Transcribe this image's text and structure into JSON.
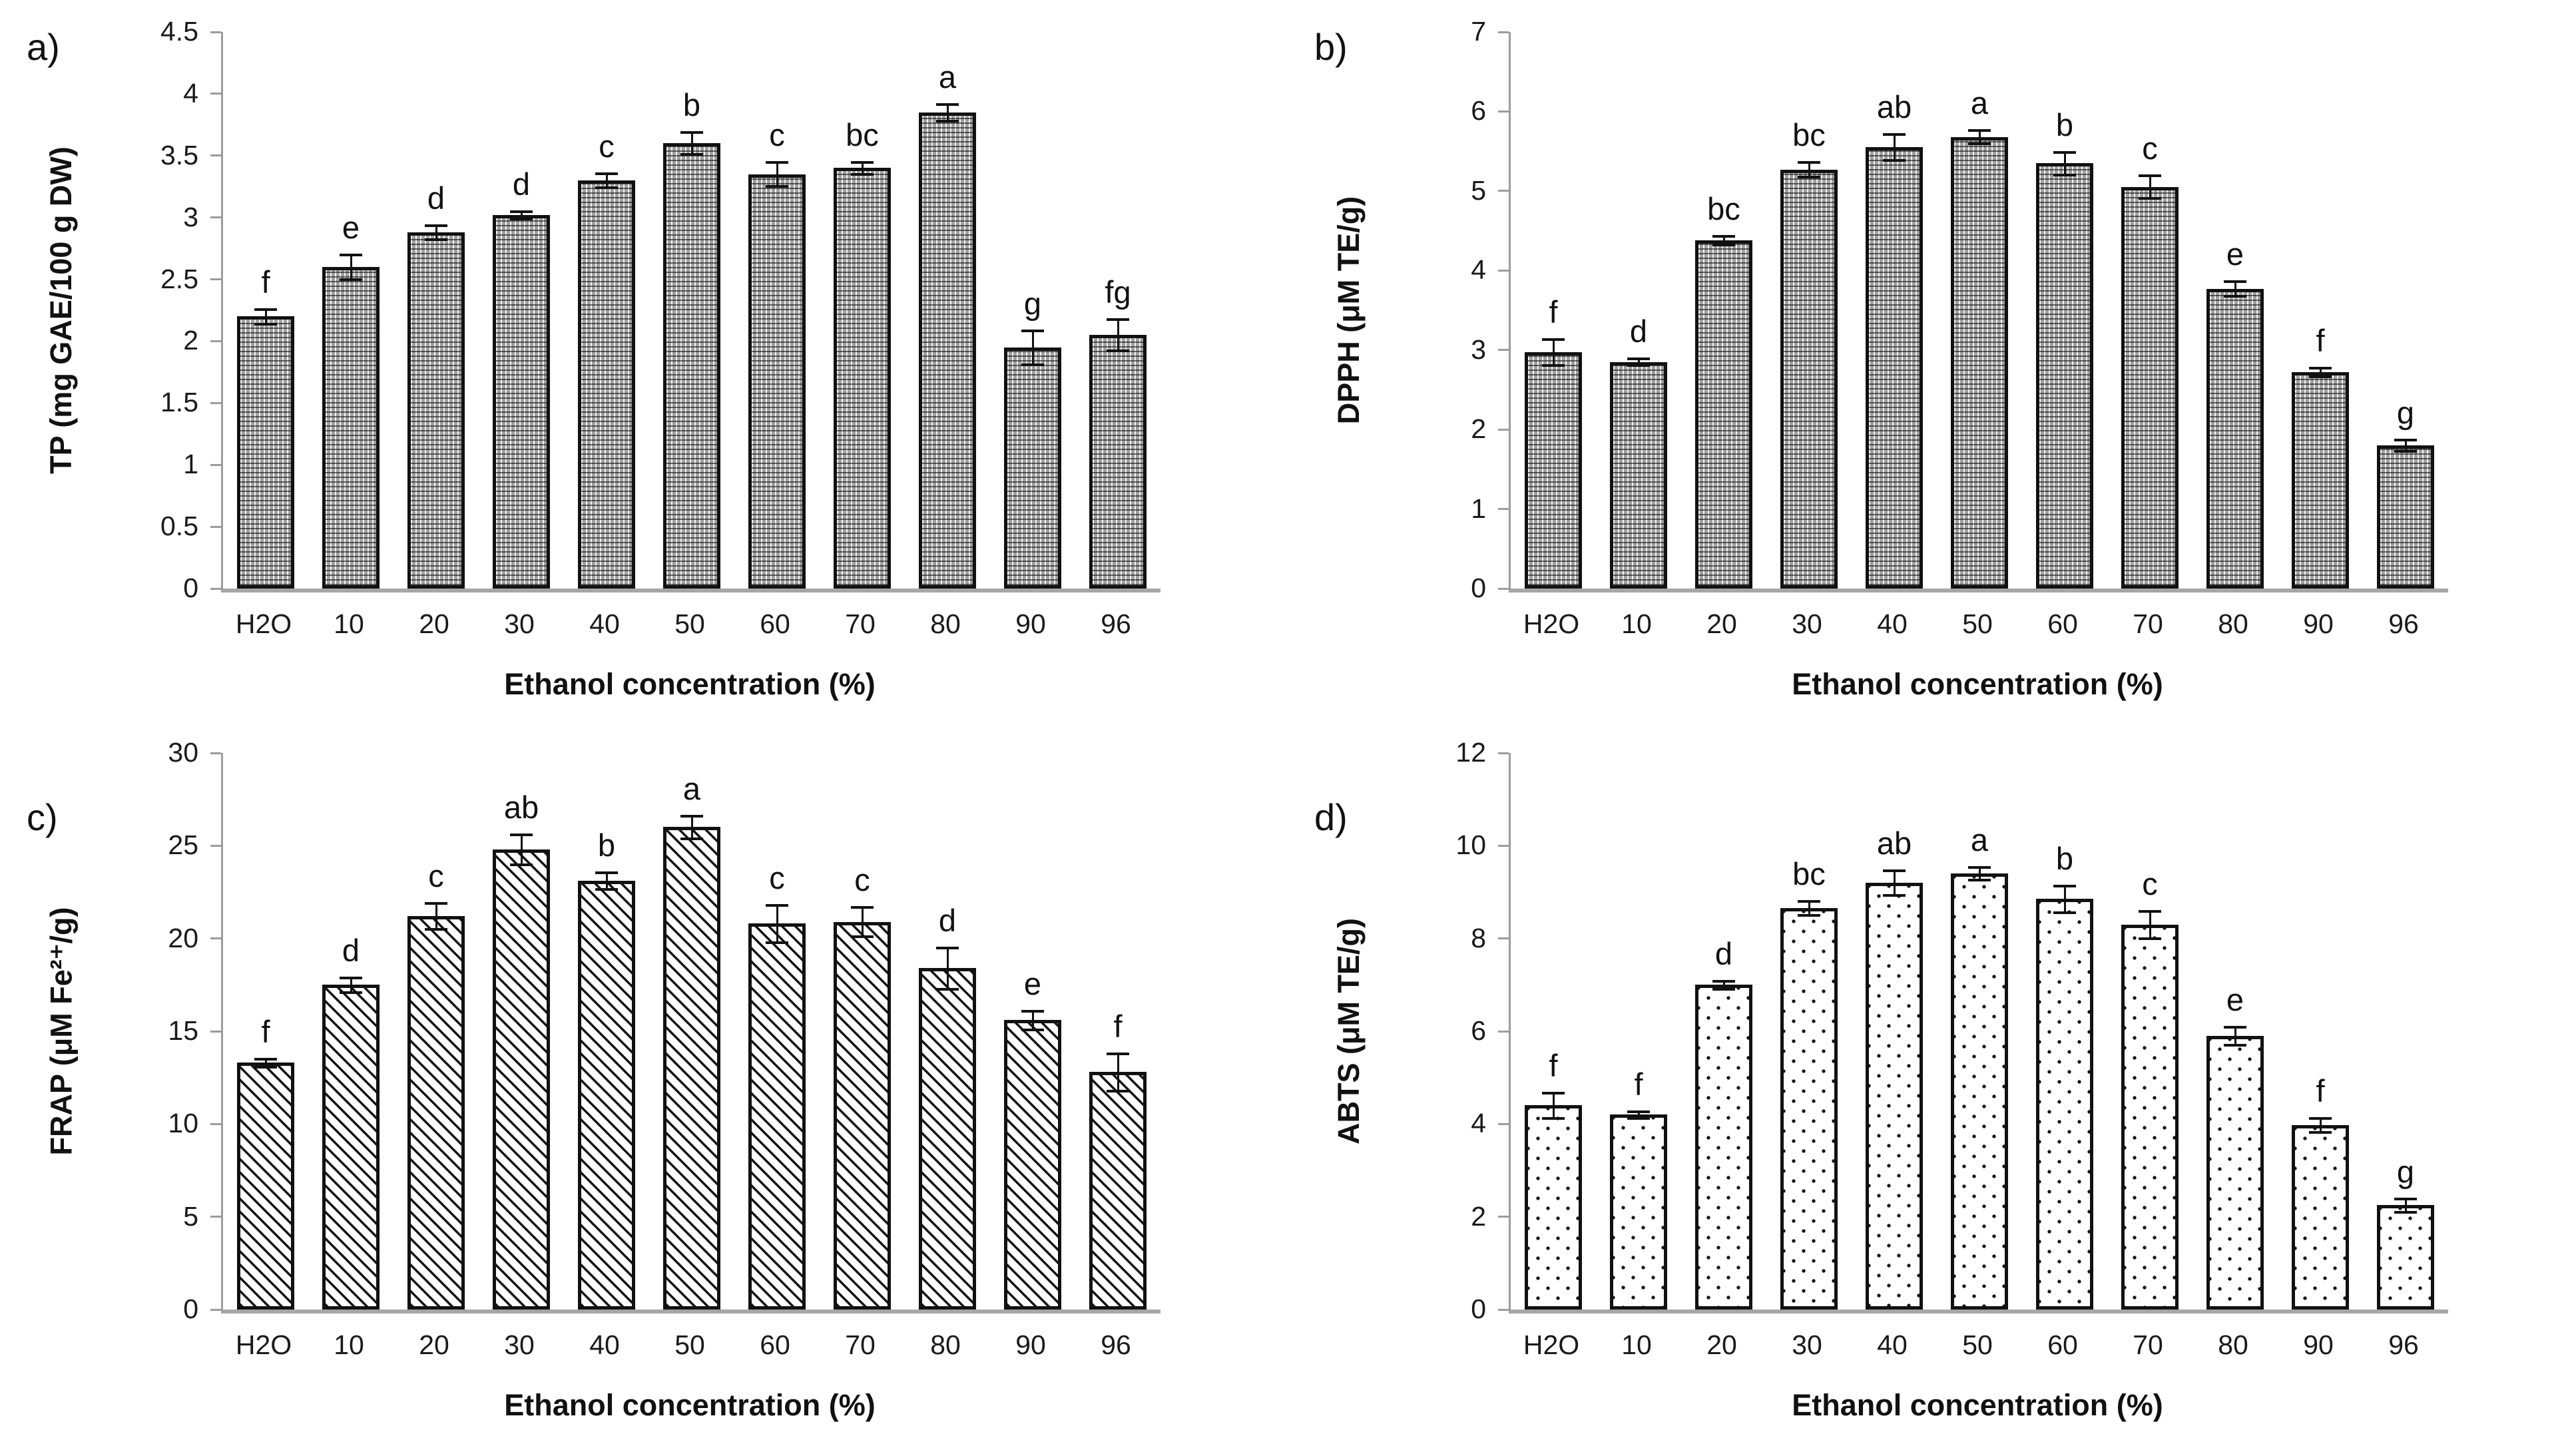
{
  "figure": {
    "xlabel": "Ethanol concentration (%)",
    "categories": [
      "H2O",
      "10",
      "20",
      "30",
      "40",
      "50",
      "60",
      "70",
      "80",
      "90",
      "96"
    ],
    "colors": {
      "axis": "#a6a6a6",
      "bar_outline": "#111111",
      "text": "#000000",
      "background": "#ffffff"
    }
  },
  "chart_data": [
    {
      "type": "bar",
      "panel_label": "a)",
      "ylabel": "TP (mg GAE/100 g DW)",
      "xlabel": "Ethanol concentration (%)",
      "categories": [
        "H2O",
        "10",
        "20",
        "30",
        "40",
        "50",
        "60",
        "70",
        "80",
        "90",
        "96"
      ],
      "values": [
        2.2,
        2.6,
        2.88,
        3.02,
        3.3,
        3.6,
        3.35,
        3.4,
        3.85,
        1.95,
        2.05
      ],
      "errors": [
        0.05,
        0.09,
        0.05,
        0.02,
        0.05,
        0.08,
        0.09,
        0.04,
        0.06,
        0.13,
        0.12
      ],
      "sig_letters": [
        "f",
        "e",
        "d",
        "d",
        "c",
        "b",
        "c",
        "bc",
        "a",
        "g",
        "fg"
      ],
      "ylim": [
        0,
        4.5
      ],
      "yticks": [
        "0",
        "0.5",
        "1",
        "1.5",
        "2",
        "2.5",
        "3",
        "3.5",
        "4",
        "4.5"
      ],
      "grid": false,
      "legend": null,
      "pattern": "fine-grid"
    },
    {
      "type": "bar",
      "panel_label": "b)",
      "ylabel": "DPPH (μM TE/g)",
      "xlabel": "Ethanol concentration (%)",
      "categories": [
        "H2O",
        "10",
        "20",
        "30",
        "40",
        "50",
        "60",
        "70",
        "80",
        "90",
        "96"
      ],
      "values": [
        2.97,
        2.85,
        4.38,
        5.27,
        5.55,
        5.68,
        5.35,
        5.05,
        3.77,
        2.72,
        1.8
      ],
      "errors": [
        0.15,
        0.03,
        0.04,
        0.08,
        0.15,
        0.07,
        0.13,
        0.13,
        0.08,
        0.04,
        0.06
      ],
      "sig_letters": [
        "f",
        "d",
        "bc",
        "bc",
        "ab",
        "a",
        "b",
        "c",
        "e",
        "f",
        "g"
      ],
      "ylim": [
        0,
        7
      ],
      "yticks": [
        "0",
        "1",
        "2",
        "3",
        "4",
        "5",
        "6",
        "7"
      ],
      "grid": false,
      "legend": null,
      "pattern": "fine-grid"
    },
    {
      "type": "bar",
      "panel_label": "c)",
      "ylabel": "FRAP (μM Fe²⁺/g)",
      "xlabel": "Ethanol concentration (%)",
      "categories": [
        "H2O",
        "10",
        "20",
        "30",
        "40",
        "50",
        "60",
        "70",
        "80",
        "90",
        "96"
      ],
      "values": [
        13.3,
        17.5,
        21.2,
        24.8,
        23.1,
        26.0,
        20.8,
        20.9,
        18.4,
        15.6,
        12.8
      ],
      "errors": [
        0.15,
        0.35,
        0.65,
        0.75,
        0.4,
        0.55,
        0.95,
        0.75,
        1.05,
        0.45,
        0.95
      ],
      "sig_letters": [
        "f",
        "d",
        "c",
        "ab",
        "b",
        "a",
        "c",
        "c",
        "d",
        "e",
        "f"
      ],
      "ylim": [
        0,
        30
      ],
      "yticks": [
        "0",
        "5",
        "10",
        "15",
        "20",
        "25",
        "30"
      ],
      "grid": false,
      "legend": null,
      "pattern": "diag-hatch"
    },
    {
      "type": "bar",
      "panel_label": "d)",
      "ylabel": "ABTS (μM TE/g)",
      "xlabel": "Ethanol concentration (%)",
      "categories": [
        "H2O",
        "10",
        "20",
        "30",
        "40",
        "50",
        "60",
        "70",
        "80",
        "90",
        "96"
      ],
      "values": [
        4.4,
        4.2,
        7.0,
        8.65,
        9.2,
        9.4,
        8.85,
        8.3,
        5.9,
        3.97,
        2.25
      ],
      "errors": [
        0.25,
        0.05,
        0.06,
        0.13,
        0.25,
        0.12,
        0.27,
        0.27,
        0.17,
        0.13,
        0.12
      ],
      "sig_letters": [
        "f",
        "f",
        "d",
        "bc",
        "ab",
        "a",
        "b",
        "c",
        "e",
        "f",
        "g"
      ],
      "ylim": [
        0,
        12
      ],
      "yticks": [
        "0",
        "2",
        "4",
        "6",
        "8",
        "10",
        "12"
      ],
      "grid": false,
      "legend": null,
      "pattern": "sparse-dots"
    }
  ]
}
